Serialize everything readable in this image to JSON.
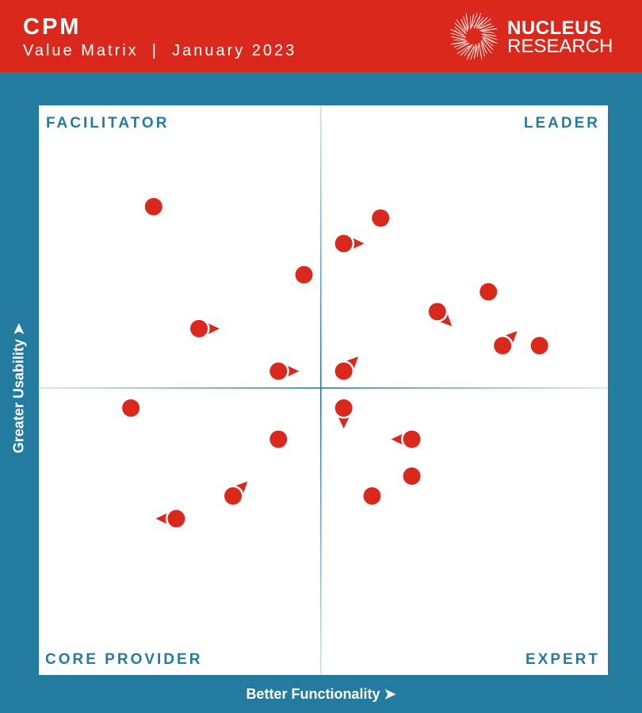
{
  "header": {
    "title": "CPM",
    "subtitle": "Value Matrix  |  January 2023",
    "logo_line1": "NUCLEUS",
    "logo_line2": "RESEARCH"
  },
  "colors": {
    "header": "#da291c",
    "background": "#247ba0",
    "marker": "#da291c",
    "quadrant_label": "#247ba0"
  },
  "chart_data": {
    "type": "scatter",
    "title": "CPM Value Matrix",
    "xlabel": "Better Functionality",
    "ylabel": "Greater Usability",
    "xlim": [
      -1,
      1
    ],
    "ylim": [
      -1,
      1
    ],
    "grid": false,
    "quadrants": {
      "top_left": "FACILITATOR",
      "top_right": "LEADER",
      "bottom_left": "CORE PROVIDER",
      "bottom_right": "EXPERT"
    },
    "points": [
      {
        "x": -0.59,
        "y": 0.64,
        "trend": "none"
      },
      {
        "x": 0.21,
        "y": 0.6,
        "trend": "none"
      },
      {
        "x": 0.08,
        "y": 0.51,
        "trend": "right"
      },
      {
        "x": -0.06,
        "y": 0.4,
        "trend": "none"
      },
      {
        "x": 0.59,
        "y": 0.34,
        "trend": "none"
      },
      {
        "x": 0.41,
        "y": 0.27,
        "trend": "down-right"
      },
      {
        "x": -0.43,
        "y": 0.21,
        "trend": "right"
      },
      {
        "x": 0.64,
        "y": 0.15,
        "trend": "up-right"
      },
      {
        "x": 0.77,
        "y": 0.15,
        "trend": "none"
      },
      {
        "x": -0.15,
        "y": 0.06,
        "trend": "right"
      },
      {
        "x": 0.08,
        "y": 0.06,
        "trend": "up-right"
      },
      {
        "x": -0.67,
        "y": -0.07,
        "trend": "none"
      },
      {
        "x": 0.08,
        "y": -0.07,
        "trend": "down"
      },
      {
        "x": 0.32,
        "y": -0.18,
        "trend": "left"
      },
      {
        "x": -0.15,
        "y": -0.18,
        "trend": "none"
      },
      {
        "x": 0.32,
        "y": -0.31,
        "trend": "none"
      },
      {
        "x": -0.31,
        "y": -0.38,
        "trend": "up-right"
      },
      {
        "x": 0.18,
        "y": -0.38,
        "trend": "none"
      },
      {
        "x": -0.51,
        "y": -0.46,
        "trend": "left"
      }
    ]
  }
}
